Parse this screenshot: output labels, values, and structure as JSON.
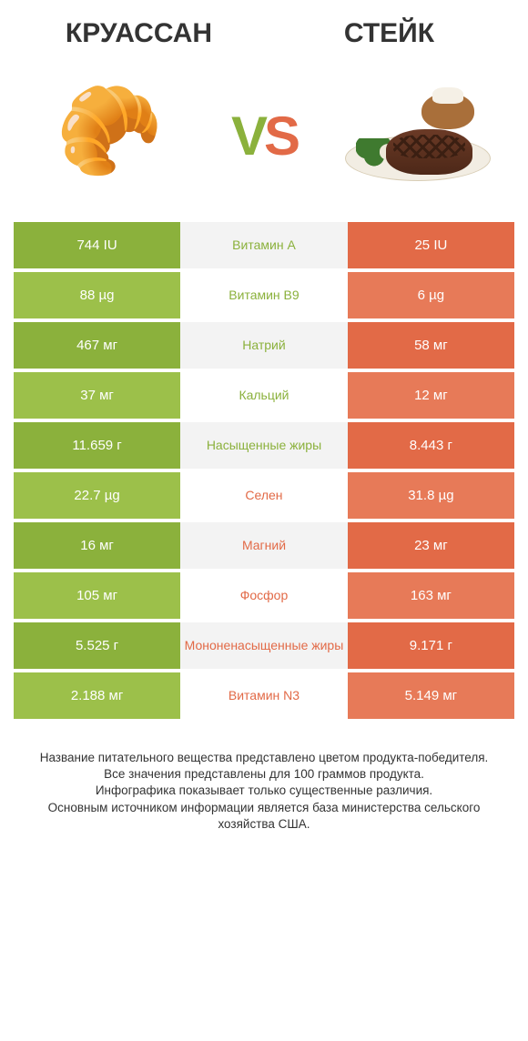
{
  "header": {
    "left_title": "КРУАССАН",
    "right_title": "СТЕЙК"
  },
  "vs": {
    "v": "V",
    "s": "S"
  },
  "colors": {
    "green_a": "#8bb13c",
    "green_b": "#9cc04a",
    "orange_a": "#e26a47",
    "orange_b": "#e77a58",
    "mid_green": "#8bb13c",
    "mid_orange": "#e26a47",
    "grey_bg_a": "#f3f3f3",
    "grey_bg_b": "#ffffff"
  },
  "table": {
    "rows": [
      {
        "left": "744 IU",
        "mid": "Витамин A",
        "right": "25 IU",
        "winner": "left",
        "alt": 0
      },
      {
        "left": "88 µg",
        "mid": "Витамин B9",
        "right": "6 µg",
        "winner": "left",
        "alt": 1
      },
      {
        "left": "467 мг",
        "mid": "Натрий",
        "right": "58 мг",
        "winner": "left",
        "alt": 0
      },
      {
        "left": "37 мг",
        "mid": "Кальций",
        "right": "12 мг",
        "winner": "left",
        "alt": 1
      },
      {
        "left": "11.659 г",
        "mid": "Насыщенные жиры",
        "right": "8.443 г",
        "winner": "left",
        "alt": 0
      },
      {
        "left": "22.7 µg",
        "mid": "Селен",
        "right": "31.8 µg",
        "winner": "right",
        "alt": 1
      },
      {
        "left": "16 мг",
        "mid": "Магний",
        "right": "23 мг",
        "winner": "right",
        "alt": 0
      },
      {
        "left": "105 мг",
        "mid": "Фосфор",
        "right": "163 мг",
        "winner": "right",
        "alt": 1
      },
      {
        "left": "5.525 г",
        "mid": "Мононенасыщенные жиры",
        "right": "9.171 г",
        "winner": "right",
        "alt": 0
      },
      {
        "left": "2.188 мг",
        "mid": "Витамин N3",
        "right": "5.149 мг",
        "winner": "right",
        "alt": 1
      }
    ]
  },
  "footer": {
    "lines": [
      "Название питательного вещества представлено цветом продукта-победителя.",
      "Все значения представлены для 100 граммов продукта.",
      "Инфографика показывает только существенные различия.",
      "Основным источником информации является база министерства сельского хозяйства США."
    ]
  }
}
